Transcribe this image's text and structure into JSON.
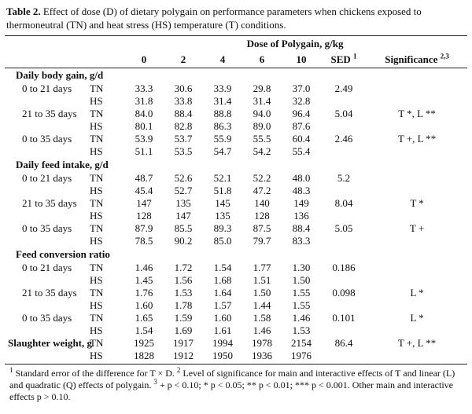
{
  "caption": {
    "label": "Table 2.",
    "text": "Effect of dose (D) of dietary polygain on performance parameters when chickens exposed to thermoneutral (TN) and heat stress (HS) temperature (T) conditions."
  },
  "header": {
    "dose_title": "Dose of Polygain, g/kg",
    "doses": [
      "0",
      "2",
      "4",
      "6",
      "10"
    ],
    "sed": "SED",
    "sed_sup": "1",
    "significance": "Significance",
    "significance_sup": "2,3"
  },
  "sections": [
    {
      "title": "Daily body gain, g/d",
      "groups": [
        {
          "period": "0 to 21 days",
          "rows": [
            {
              "t": "TN",
              "values": [
                "33.3",
                "30.6",
                "33.9",
                "29.8",
                "37.0"
              ],
              "sed": "2.49",
              "sig": ""
            },
            {
              "t": "HS",
              "values": [
                "31.8",
                "33.8",
                "31.4",
                "31.4",
                "32.8"
              ],
              "sed": "",
              "sig": ""
            }
          ]
        },
        {
          "period": "21 to 35 days",
          "rows": [
            {
              "t": "TN",
              "values": [
                "84.0",
                "88.4",
                "88.8",
                "94.0",
                "96.4"
              ],
              "sed": "5.04",
              "sig": "T *, L **"
            },
            {
              "t": "HS",
              "values": [
                "80.1",
                "82.8",
                "86.3",
                "89.0",
                "87.6"
              ],
              "sed": "",
              "sig": ""
            }
          ]
        },
        {
          "period": "0 to 35 days",
          "rows": [
            {
              "t": "TN",
              "values": [
                "53.9",
                "53.7",
                "55.9",
                "55.5",
                "60.4"
              ],
              "sed": "2.46",
              "sig": "T +, L **"
            },
            {
              "t": "HS",
              "values": [
                "51.1",
                "53.5",
                "54.7",
                "54.2",
                "55.4"
              ],
              "sed": "",
              "sig": ""
            }
          ]
        }
      ]
    },
    {
      "title": "Daily feed intake, g/d",
      "groups": [
        {
          "period": "0 to 21 days",
          "rows": [
            {
              "t": "TN",
              "values": [
                "48.7",
                "52.6",
                "52.1",
                "52.2",
                "48.0"
              ],
              "sed": "5.2",
              "sig": ""
            },
            {
              "t": "HS",
              "values": [
                "45.4",
                "52.7",
                "51.8",
                "47.2",
                "48.3"
              ],
              "sed": "",
              "sig": ""
            }
          ]
        },
        {
          "period": "21 to 35 days",
          "rows": [
            {
              "t": "TN",
              "values": [
                "147",
                "135",
                "145",
                "140",
                "149"
              ],
              "sed": "8.04",
              "sig": "T *"
            },
            {
              "t": "HS",
              "values": [
                "128",
                "147",
                "135",
                "128",
                "136"
              ],
              "sed": "",
              "sig": ""
            }
          ]
        },
        {
          "period": "0 to 35 days",
          "rows": [
            {
              "t": "TN",
              "values": [
                "87.9",
                "85.5",
                "89.3",
                "87.5",
                "88.4"
              ],
              "sed": "5.05",
              "sig": "T +"
            },
            {
              "t": "HS",
              "values": [
                "78.5",
                "90.2",
                "85.0",
                "79.7",
                "83.3"
              ],
              "sed": "",
              "sig": ""
            }
          ]
        }
      ]
    },
    {
      "title": "Feed conversion ratio",
      "groups": [
        {
          "period": "0 to 21 days",
          "rows": [
            {
              "t": "TN",
              "values": [
                "1.46",
                "1.72",
                "1.54",
                "1.77",
                "1.30"
              ],
              "sed": "0.186",
              "sig": ""
            },
            {
              "t": "HS",
              "values": [
                "1.45",
                "1.56",
                "1.68",
                "1.51",
                "1.50"
              ],
              "sed": "",
              "sig": ""
            }
          ]
        },
        {
          "period": "21 to 35 days",
          "rows": [
            {
              "t": "TN",
              "values": [
                "1.76",
                "1.53",
                "1.64",
                "1.50",
                "1.55"
              ],
              "sed": "0.098",
              "sig": "L *"
            },
            {
              "t": "HS",
              "values": [
                "1.60",
                "1.78",
                "1.57",
                "1.44",
                "1.55"
              ],
              "sed": "",
              "sig": ""
            }
          ]
        },
        {
          "period": "0 to 35 days",
          "rows": [
            {
              "t": "TN",
              "values": [
                "1.65",
                "1.59",
                "1.60",
                "1.58",
                "1.46"
              ],
              "sed": "0.101",
              "sig": "L *"
            },
            {
              "t": "HS",
              "values": [
                "1.54",
                "1.69",
                "1.61",
                "1.46",
                "1.53"
              ],
              "sed": "",
              "sig": ""
            }
          ]
        }
      ]
    }
  ],
  "slaughter": {
    "label": "Slaughter weight, g",
    "rows": [
      {
        "t": "TN",
        "values": [
          "1925",
          "1917",
          "1994",
          "1978",
          "2154"
        ],
        "sed": "86.4",
        "sig": "T +, L **"
      },
      {
        "t": "HS",
        "values": [
          "1828",
          "1912",
          "1950",
          "1936",
          "1976"
        ],
        "sed": "",
        "sig": ""
      }
    ]
  },
  "footnote": {
    "sup1": "1",
    "text1": " Standard error of the difference for T × D. ",
    "sup2": "2",
    "text2": " Level of significance for main and interactive effects of T and linear (L) and quadratic (Q) effects of polygain. ",
    "sup3": "3",
    "text3": " + p < 0.10; * p < 0.05; ** p < 0.01; *** p < 0.001. Other main and interactive effects p > 0.10."
  }
}
